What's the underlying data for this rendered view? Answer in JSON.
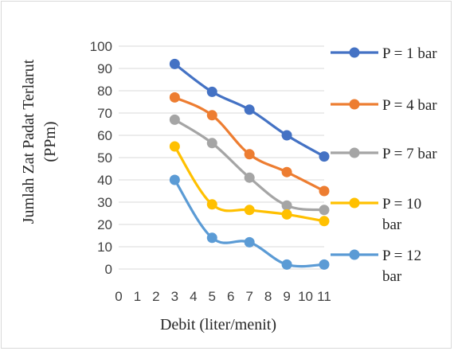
{
  "chart_data": {
    "type": "line",
    "title": "",
    "xlabel": "Debit (liter/menit)",
    "ylabel_lines": [
      "Jumlah Zat Padat Terlarut",
      "(PPm)"
    ],
    "xlim": [
      0,
      11
    ],
    "ylim": [
      0,
      100
    ],
    "x_ticks": [
      0,
      1,
      2,
      3,
      4,
      5,
      6,
      7,
      8,
      9,
      10,
      11
    ],
    "y_ticks": [
      0,
      10,
      20,
      30,
      40,
      50,
      60,
      70,
      80,
      90,
      100
    ],
    "grid": true,
    "legend_position": "right",
    "smooth": true,
    "series": [
      {
        "name": "P = 1 bar",
        "legend_lines": [
          "P = 1 bar"
        ],
        "color": "#4472c4",
        "x": [
          3,
          5,
          7,
          9,
          11
        ],
        "y": [
          92,
          79.5,
          71.5,
          60,
          50.5
        ]
      },
      {
        "name": "P = 4 bar",
        "legend_lines": [
          "P = 4 bar"
        ],
        "color": "#ed7d31",
        "x": [
          3,
          5,
          7,
          9,
          11
        ],
        "y": [
          77,
          69,
          51.5,
          43.5,
          35
        ]
      },
      {
        "name": "P = 7 bar",
        "legend_lines": [
          "P = 7 bar"
        ],
        "color": "#a5a5a5",
        "x": [
          3,
          5,
          7,
          9,
          11
        ],
        "y": [
          67,
          56.5,
          41,
          28.5,
          26.5
        ]
      },
      {
        "name": "P = 10 bar",
        "legend_lines": [
          "P = 10",
          "bar"
        ],
        "color": "#ffc000",
        "x": [
          3,
          5,
          7,
          9,
          11
        ],
        "y": [
          55,
          29,
          26.5,
          24.5,
          21.5
        ]
      },
      {
        "name": "P = 12 bar",
        "legend_lines": [
          "P = 12",
          "bar"
        ],
        "color": "#5b9bd5",
        "x": [
          3,
          5,
          7,
          9,
          11
        ],
        "y": [
          40,
          14,
          12,
          2,
          2
        ]
      }
    ]
  }
}
